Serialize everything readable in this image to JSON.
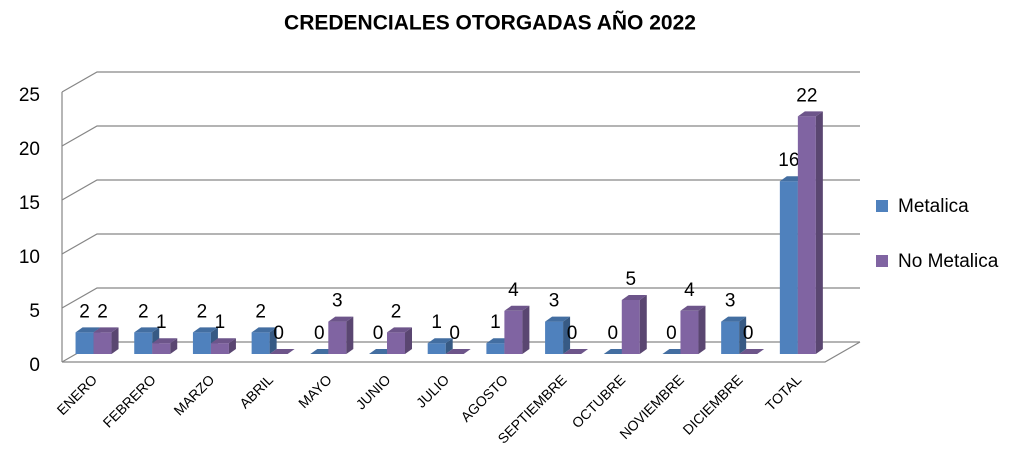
{
  "chart_data": {
    "type": "bar3d",
    "title": "CREDENCIALES OTORGADAS AÑO 2022",
    "categories": [
      "ENERO",
      "FEBRERO",
      "MARZO",
      "ABRIL",
      "MAYO",
      "JUNIO",
      "JULIO",
      "AGOSTO",
      "SEPTIEMBRE",
      "OCTUBRE",
      "NOVIEMBRE",
      "DICIEMBRE",
      "TOTAL"
    ],
    "series": [
      {
        "name": "Metalica",
        "color": "#4f81bd",
        "values": [
          2,
          2,
          2,
          2,
          0,
          0,
          1,
          1,
          3,
          0,
          0,
          3,
          16
        ]
      },
      {
        "name": "No Metalica",
        "color": "#8064a2",
        "values": [
          2,
          1,
          1,
          0,
          3,
          2,
          0,
          4,
          0,
          5,
          4,
          0,
          22
        ]
      }
    ],
    "ylim": [
      0,
      25
    ],
    "yticks": [
      0,
      5,
      10,
      15,
      20,
      25
    ],
    "grid": true,
    "legend": "right"
  }
}
